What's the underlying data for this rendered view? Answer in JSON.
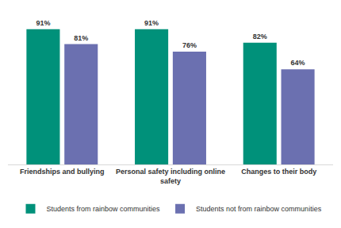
{
  "chart_data": {
    "type": "bar",
    "categories": [
      "Friendships and bullying",
      "Personal safety including online safety",
      "Changes to their body"
    ],
    "series": [
      {
        "name": "Students from rainbow communities",
        "color": "#00917a",
        "values": [
          91,
          91,
          82
        ],
        "value_labels": [
          "91%",
          "91%",
          "82%"
        ]
      },
      {
        "name": "Students not from rainbow communities",
        "color": "#6b70b0",
        "values": [
          81,
          76,
          64
        ],
        "value_labels": [
          "81%",
          "76%",
          "64%"
        ]
      }
    ],
    "ylim": [
      0,
      100
    ],
    "yticks": [
      0,
      100
    ],
    "grid": false,
    "legend": "bottom",
    "data_labels": true,
    "tick_labels": "x"
  }
}
